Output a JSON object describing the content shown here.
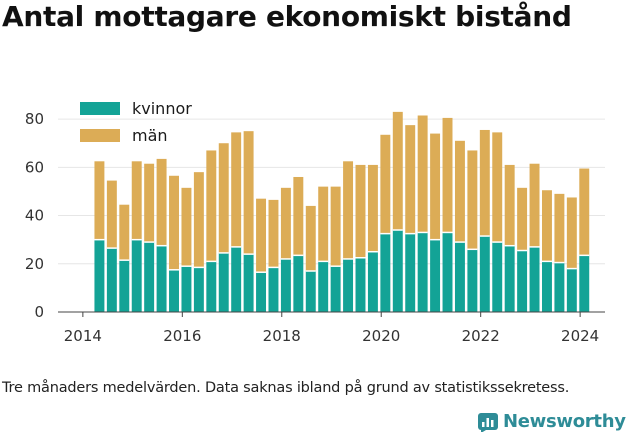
{
  "title": "Antal mottagare ekonomiskt bistånd",
  "footnote": "Tre månaders medelvärden. Data saknas ibland på grund av statistikssekretess.",
  "brand": {
    "name": "Newsworthy",
    "color": "#2e8c97"
  },
  "chart_data": {
    "type": "bar",
    "stacked": true,
    "title": "Antal mottagare ekonomiskt bistånd",
    "xlabel": "",
    "ylabel": "",
    "ylim": [
      0,
      90
    ],
    "xlim": [
      2013.5,
      2024.5
    ],
    "yticks": [
      0,
      20,
      40,
      60,
      80
    ],
    "xticks": [
      2014,
      2016,
      2018,
      2020,
      2022,
      2024
    ],
    "grid": "horizontal",
    "legend": "top-left",
    "x": [
      2014.333,
      2014.583,
      2014.833,
      2015.083,
      2015.333,
      2015.583,
      2015.833,
      2016.083,
      2016.333,
      2016.583,
      2016.833,
      2017.083,
      2017.333,
      2017.583,
      2017.833,
      2018.083,
      2018.333,
      2018.583,
      2018.833,
      2019.083,
      2019.333,
      2019.583,
      2019.833,
      2020.083,
      2020.333,
      2020.583,
      2020.833,
      2021.083,
      2021.333,
      2021.583,
      2021.833,
      2022.083,
      2022.333,
      2022.583,
      2022.833,
      2023.083,
      2023.333,
      2023.583,
      2023.833,
      2024.083
    ],
    "series": [
      {
        "name": "kvinnor",
        "color": "#13a396",
        "values": [
          30,
          26.5,
          21.5,
          30,
          29,
          27.5,
          17.5,
          19,
          18.5,
          21,
          24.5,
          27,
          24,
          16.5,
          18.5,
          22,
          23.5,
          17,
          21,
          19,
          22,
          22.5,
          25,
          32.5,
          34,
          32.5,
          33,
          30,
          33,
          29,
          26,
          31.5,
          29,
          27.5,
          25.5,
          27,
          21,
          20.5,
          18,
          23.5
        ]
      },
      {
        "name": "män",
        "color": "#dcac56",
        "values": [
          32.5,
          28,
          23,
          32.5,
          32.5,
          36,
          39,
          32.5,
          39.5,
          46,
          45.5,
          47.5,
          51,
          30.5,
          28,
          29.5,
          32.5,
          27,
          31,
          33,
          40.5,
          38.5,
          36,
          41,
          49,
          45,
          48.5,
          44,
          47.5,
          42,
          41,
          44,
          45.5,
          33.5,
          26,
          34.5,
          29.5,
          28.5,
          29.5,
          36
        ]
      }
    ]
  }
}
